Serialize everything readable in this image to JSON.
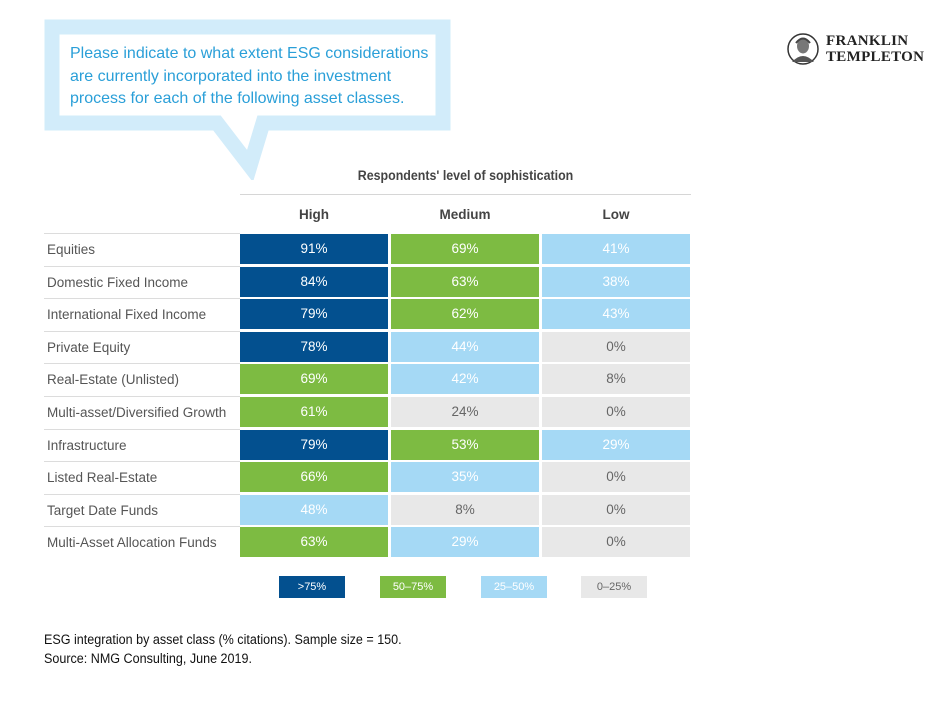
{
  "question": "Please indicate to what extent ESG considerations are currently incorporated into the investment process for each of the following asset classes.",
  "logo": {
    "line1": "FRANKLIN",
    "line2": "TEMPLETON"
  },
  "colors": {
    "high": "#03508f",
    "mid": "#7dbb42",
    "low": "#a5d9f5",
    "none": "#e8e8e8",
    "callout": "#d2ecfa",
    "question": "#2a9fd8"
  },
  "chart_data": {
    "type": "table",
    "title": "Respondents' level of sophistication",
    "columns": [
      "High",
      "Medium",
      "Low"
    ],
    "rows": [
      {
        "label": "Equities",
        "values": [
          91,
          69,
          41
        ]
      },
      {
        "label": "Domestic Fixed Income",
        "values": [
          84,
          63,
          38
        ]
      },
      {
        "label": "International Fixed Income",
        "values": [
          79,
          62,
          43
        ]
      },
      {
        "label": "Private Equity",
        "values": [
          78,
          44,
          0
        ]
      },
      {
        "label": "Real-Estate (Unlisted)",
        "values": [
          69,
          42,
          8
        ]
      },
      {
        "label": "Multi-asset/Diversified Growth",
        "values": [
          61,
          24,
          0
        ]
      },
      {
        "label": "Infrastructure",
        "values": [
          79,
          53,
          29
        ]
      },
      {
        "label": "Listed Real-Estate",
        "values": [
          66,
          35,
          0
        ]
      },
      {
        "label": "Target Date Funds",
        "values": [
          48,
          8,
          0
        ]
      },
      {
        "label": "Multi-Asset Allocation Funds",
        "values": [
          63,
          29,
          0
        ]
      }
    ],
    "unit": "%",
    "legend": [
      {
        "label": ">75%",
        "level": "high"
      },
      {
        "label": "50–75%",
        "level": "mid"
      },
      {
        "label": "25–50%",
        "level": "low"
      },
      {
        "label": "0–25%",
        "level": "none"
      }
    ],
    "legend_position": "bottom"
  },
  "notes": {
    "caption": "ESG integration by asset class (% citations). Sample size = 150.",
    "source": "Source: NMG Consulting, June 2019."
  }
}
